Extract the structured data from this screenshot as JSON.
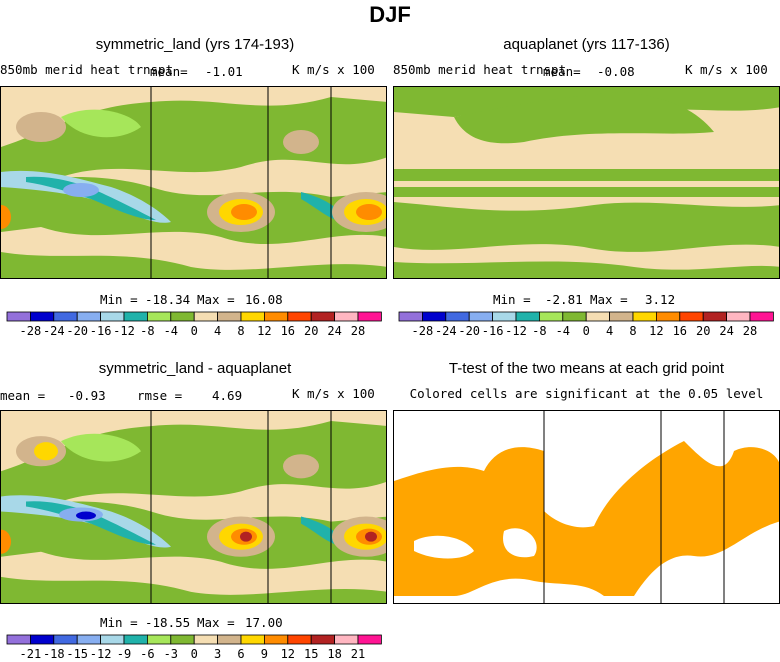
{
  "main_title": "DJF",
  "panels": {
    "top_left": {
      "title": "symmetric_land (yrs 174-193)",
      "field_label": "850mb merid heat trnspt",
      "mean_label": "mean=",
      "mean_value": "-1.01",
      "units": "K m/s x 100",
      "min_label": "Min =",
      "min_value": "-18.34",
      "max_label": "Max =",
      "max_value": "16.08"
    },
    "top_right": {
      "title": "aquaplanet (yrs 117-136)",
      "field_label": "850mb merid heat trnspt",
      "mean_label": "mean=",
      "mean_value": "-0.08",
      "units": "K m/s x 100",
      "min_label": "Min =",
      "min_value": "-2.81",
      "max_label": "Max =",
      "max_value": "3.12"
    },
    "bottom_left": {
      "title": "symmetric_land - aquaplanet",
      "mean_label": "mean =",
      "mean_value": "-0.93",
      "rmse_label": "rmse =",
      "rmse_value": "4.69",
      "units": "K m/s x 100",
      "min_label": "Min =",
      "min_value": "-18.55",
      "max_label": "Max =",
      "max_value": "17.00"
    },
    "bottom_right": {
      "title": "T-test of the two means at each grid point",
      "subtitle": "Colored cells are significant at the 0.05 level"
    }
  },
  "colors": {
    "bar": [
      "#9370db",
      "#0000cd",
      "#4169e1",
      "#87aef0",
      "#a8d8e8",
      "#20b2aa",
      "#a6e65a",
      "#7fb832",
      "#f5deb3",
      "#d2b48c",
      "#ffd700",
      "#ff8c00",
      "#ff4500",
      "#b22222",
      "#ffb6c1",
      "#ff1493"
    ],
    "significant": "#ffa500"
  },
  "chart_data": [
    {
      "type": "heatmap",
      "name": "symmetric_land 850mb meridional heat transport",
      "mean": -1.01,
      "min": -18.34,
      "max": 16.08,
      "units": "K m/s x 100",
      "colorbar_ticks": [
        "-28",
        "-24",
        "-20",
        "-16",
        "-12",
        "-8",
        "-4",
        "0",
        "4",
        "8",
        "12",
        "16",
        "20",
        "24",
        "28"
      ]
    },
    {
      "type": "heatmap",
      "name": "aquaplanet 850mb meridional heat transport",
      "mean": -0.08,
      "min": -2.81,
      "max": 3.12,
      "units": "K m/s x 100",
      "colorbar_ticks": [
        "-28",
        "-24",
        "-20",
        "-16",
        "-12",
        "-8",
        "-4",
        "0",
        "4",
        "8",
        "12",
        "16",
        "20",
        "24",
        "28"
      ]
    },
    {
      "type": "heatmap",
      "name": "symmetric_land - aquaplanet",
      "mean": -0.93,
      "rmse": 4.69,
      "min": -18.55,
      "max": 17.0,
      "units": "K m/s x 100",
      "colorbar_ticks": [
        "-21",
        "-18",
        "-15",
        "-12",
        "-9",
        "-6",
        "-3",
        "0",
        "3",
        "6",
        "9",
        "12",
        "15",
        "18",
        "21"
      ]
    },
    {
      "type": "heatmap",
      "name": "T-test significance",
      "significance_level": 0.05
    }
  ]
}
